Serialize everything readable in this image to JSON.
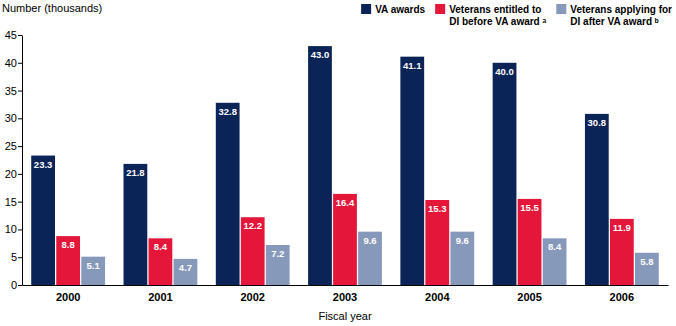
{
  "chart_data": {
    "type": "bar",
    "x_label": "Fiscal year",
    "y_label": "Number (thousands)",
    "categories": [
      "2000",
      "2001",
      "2002",
      "2003",
      "2004",
      "2005",
      "2006"
    ],
    "series": [
      {
        "name": "VA awards",
        "color": "#0b2458",
        "values": [
          23.3,
          21.8,
          32.8,
          43.0,
          41.1,
          40.0,
          30.8
        ],
        "value_labels": [
          "23.3",
          "21.8",
          "32.8",
          "43.0",
          "41.1",
          "40.0",
          "30.8"
        ]
      },
      {
        "name": "Veterans entitled to DI before VA award ᵃ",
        "color": "#e4163a",
        "values": [
          8.8,
          8.4,
          12.2,
          16.4,
          15.3,
          15.5,
          11.9
        ],
        "value_labels": [
          "8.8",
          "8.4",
          "12.2",
          "16.4",
          "15.3",
          "15.5",
          "11.9"
        ]
      },
      {
        "name": "Veterans applying for DI after VA award ᵇ",
        "color": "#8799ba",
        "values": [
          5.1,
          4.7,
          7.2,
          9.6,
          9.6,
          8.4,
          5.8
        ],
        "value_labels": [
          "5.1",
          "4.7",
          "7.2",
          "9.6",
          "9.6",
          "8.4",
          "5.8"
        ]
      }
    ],
    "ylim": [
      0,
      45
    ],
    "yticks": [
      0,
      5,
      10,
      15,
      20,
      25,
      30,
      35,
      40,
      45
    ],
    "grid": false,
    "legend": "top-right",
    "data_labels": true
  }
}
